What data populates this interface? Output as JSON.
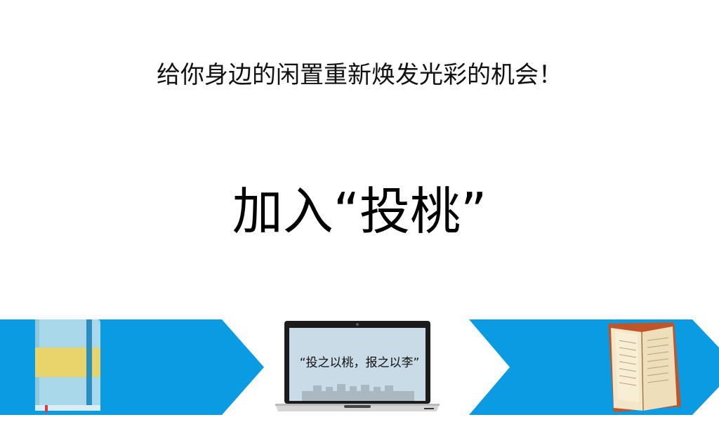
{
  "subtitle": "给你身边的闲置重新焕发光彩的机会！",
  "headline": "加入“投桃”",
  "laptop_quote": "“投之以桃，报之以李”",
  "colors": {
    "background": "#ffffff",
    "banner_blue": "#0a9be3",
    "notebook_blue": "#a9d8ea",
    "notebook_band": "#e8d46a",
    "book_cover": "#c0552a"
  },
  "icons": {
    "left": "notebook-icon",
    "center": "laptop-icon",
    "right": "open-book-icon"
  }
}
